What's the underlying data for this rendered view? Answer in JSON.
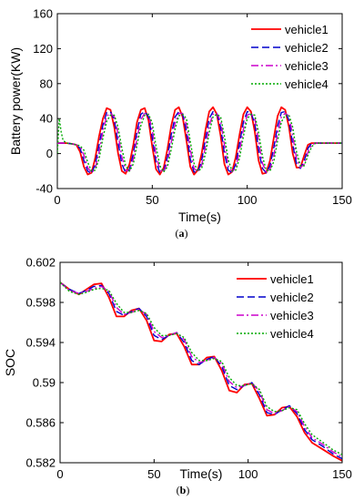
{
  "chart_data": [
    {
      "id": "a",
      "type": "line",
      "caption": "(a)",
      "xlabel": "Time(s)",
      "ylabel": "Battery power(KW)",
      "xlim": [
        0,
        150
      ],
      "ylim": [
        -40,
        160
      ],
      "xticks": [
        0,
        50,
        100,
        150
      ],
      "yticks": [
        -40,
        0,
        40,
        80,
        120,
        160
      ],
      "ytick_labels": [
        "-40",
        "0",
        "40",
        "80",
        "120",
        "160"
      ],
      "grid": false,
      "legend_position": "top-right",
      "x": [
        0,
        1,
        2,
        3,
        5,
        8,
        10,
        12,
        14,
        16,
        18,
        20,
        22,
        24,
        26,
        28,
        30,
        32,
        34,
        36,
        38,
        40,
        42,
        44,
        46,
        48,
        50,
        52,
        54,
        56,
        58,
        60,
        62,
        64,
        66,
        68,
        70,
        72,
        74,
        76,
        78,
        80,
        82,
        84,
        86,
        88,
        90,
        92,
        94,
        96,
        98,
        100,
        102,
        104,
        106,
        108,
        110,
        112,
        114,
        116,
        118,
        120,
        122,
        124,
        126,
        128,
        130,
        132,
        134,
        136,
        138,
        140,
        145,
        150
      ],
      "series": [
        {
          "name": "vehicle1",
          "color": "#ff0000",
          "dash": "solid",
          "values": [
            12,
            12,
            12,
            12,
            12,
            11,
            10,
            2,
            -15,
            -24,
            -22,
            -5,
            20,
            40,
            52,
            50,
            30,
            0,
            -20,
            -23,
            -12,
            10,
            36,
            50,
            52,
            38,
            8,
            -18,
            -24,
            -16,
            5,
            32,
            50,
            53,
            42,
            15,
            -15,
            -24,
            -19,
            0,
            27,
            48,
            53,
            45,
            20,
            -12,
            -24,
            -21,
            -4,
            22,
            45,
            53,
            48,
            25,
            -8,
            -23,
            -22,
            -8,
            18,
            43,
            53,
            50,
            30,
            0,
            -16,
            -16,
            -2,
            10,
            12,
            12,
            12,
            12,
            12,
            12
          ]
        },
        {
          "name": "vehicle2",
          "color": "#0000cc",
          "dash": "8,4",
          "values": [
            12,
            12,
            12,
            12,
            12,
            11,
            10,
            6,
            -8,
            -20,
            -23,
            -12,
            10,
            33,
            47,
            48,
            38,
            12,
            -12,
            -22,
            -18,
            0,
            26,
            45,
            48,
            42,
            18,
            -10,
            -22,
            -20,
            -4,
            22,
            42,
            48,
            45,
            25,
            -6,
            -21,
            -21,
            -8,
            17,
            40,
            48,
            46,
            30,
            0,
            -19,
            -22,
            -12,
            12,
            36,
            48,
            47,
            34,
            4,
            -17,
            -22,
            -14,
            7,
            32,
            47,
            48,
            38,
            10,
            -12,
            -17,
            -8,
            6,
            12,
            12,
            12,
            12,
            12,
            12
          ]
        },
        {
          "name": "vehicle3",
          "color": "#cc00cc",
          "dash": "8,3,2,3",
          "values": [
            12,
            12,
            12,
            12,
            12,
            11,
            10,
            8,
            -2,
            -16,
            -22,
            -17,
            2,
            26,
            43,
            46,
            42,
            22,
            -4,
            -19,
            -20,
            -6,
            18,
            39,
            46,
            45,
            27,
            -2,
            -19,
            -21,
            -10,
            13,
            35,
            46,
            46,
            33,
            4,
            -17,
            -21,
            -13,
            8,
            32,
            45,
            46,
            37,
            10,
            -14,
            -21,
            -16,
            3,
            28,
            44,
            46,
            40,
            14,
            -11,
            -21,
            -18,
            -2,
            24,
            42,
            46,
            43,
            20,
            -6,
            -16,
            -12,
            2,
            10,
            12,
            12,
            12,
            12,
            12
          ]
        },
        {
          "name": "vehicle4",
          "color": "#00aa00",
          "dash": "2,2",
          "values": [
            0,
            40,
            25,
            15,
            12,
            11,
            10,
            9,
            4,
            -10,
            -20,
            -19,
            -6,
            18,
            37,
            44,
            44,
            30,
            6,
            -14,
            -20,
            -12,
            10,
            32,
            44,
            45,
            35,
            8,
            -14,
            -21,
            -15,
            5,
            28,
            43,
            45,
            40,
            14,
            -11,
            -20,
            -17,
            0,
            24,
            42,
            45,
            42,
            20,
            -7,
            -20,
            -19,
            -5,
            20,
            40,
            45,
            44,
            24,
            -3,
            -19,
            -20,
            -9,
            15,
            36,
            44,
            44,
            30,
            2,
            -14,
            -14,
            -2,
            8,
            12,
            12,
            12,
            12,
            12
          ]
        }
      ]
    },
    {
      "id": "b",
      "type": "line",
      "caption": "(b)",
      "xlabel": "Time(s)",
      "ylabel": "SOC",
      "xlim": [
        0,
        150
      ],
      "ylim": [
        0.582,
        0.602
      ],
      "xticks": [
        0,
        50,
        100,
        150
      ],
      "yticks": [
        0.582,
        0.586,
        0.59,
        0.594,
        0.598,
        0.602
      ],
      "ytick_labels": [
        "0.582",
        "0.586",
        "0.59",
        "0.594",
        "0.598",
        "0.602"
      ],
      "grid": false,
      "legend_position": "top-right",
      "x": [
        0,
        5,
        10,
        14,
        18,
        22,
        26,
        30,
        34,
        38,
        42,
        46,
        50,
        54,
        58,
        62,
        66,
        70,
        74,
        78,
        82,
        86,
        90,
        94,
        98,
        102,
        106,
        110,
        114,
        118,
        122,
        126,
        130,
        134,
        140,
        145,
        150
      ],
      "series": [
        {
          "name": "vehicle1",
          "color": "#ff0000",
          "dash": "solid",
          "values": [
            0.6,
            0.5993,
            0.5988,
            0.5993,
            0.5998,
            0.5999,
            0.5985,
            0.5966,
            0.5966,
            0.5972,
            0.5974,
            0.5962,
            0.5942,
            0.5941,
            0.5948,
            0.5949,
            0.5936,
            0.5918,
            0.5918,
            0.5925,
            0.5926,
            0.5912,
            0.5892,
            0.589,
            0.5898,
            0.5899,
            0.5884,
            0.5867,
            0.5868,
            0.5875,
            0.5876,
            0.5866,
            0.585,
            0.584,
            0.5833,
            0.5827,
            0.5822
          ]
        },
        {
          "name": "vehicle2",
          "color": "#0000cc",
          "dash": "8,4",
          "values": [
            0.6,
            0.5993,
            0.5989,
            0.5992,
            0.5996,
            0.5997,
            0.5989,
            0.5971,
            0.5967,
            0.5971,
            0.5974,
            0.5966,
            0.5947,
            0.5943,
            0.5947,
            0.595,
            0.594,
            0.5922,
            0.5918,
            0.5923,
            0.5926,
            0.5916,
            0.5897,
            0.5893,
            0.5897,
            0.59,
            0.5888,
            0.587,
            0.5868,
            0.5873,
            0.5877,
            0.5869,
            0.5853,
            0.5843,
            0.5836,
            0.5829,
            0.5824
          ]
        },
        {
          "name": "vehicle3",
          "color": "#cc00cc",
          "dash": "8,3,2,3",
          "values": [
            0.6,
            0.5992,
            0.5989,
            0.5991,
            0.5994,
            0.5996,
            0.5991,
            0.5975,
            0.5968,
            0.597,
            0.5973,
            0.5968,
            0.5951,
            0.5945,
            0.5947,
            0.595,
            0.5943,
            0.5926,
            0.592,
            0.5922,
            0.5925,
            0.5919,
            0.5901,
            0.5895,
            0.5897,
            0.59,
            0.5891,
            0.5873,
            0.5869,
            0.5872,
            0.5876,
            0.5871,
            0.5856,
            0.5845,
            0.5838,
            0.5831,
            0.5826
          ]
        },
        {
          "name": "vehicle4",
          "color": "#00aa00",
          "dash": "2,2",
          "values": [
            0.6,
            0.5991,
            0.5988,
            0.599,
            0.5993,
            0.5994,
            0.5992,
            0.5979,
            0.597,
            0.597,
            0.5972,
            0.5969,
            0.5955,
            0.5947,
            0.5947,
            0.5949,
            0.5945,
            0.593,
            0.5922,
            0.5922,
            0.5924,
            0.5921,
            0.5905,
            0.5897,
            0.5897,
            0.5899,
            0.5893,
            0.5876,
            0.5871,
            0.5872,
            0.5875,
            0.5873,
            0.5859,
            0.5848,
            0.584,
            0.5833,
            0.5828
          ]
        }
      ]
    }
  ]
}
